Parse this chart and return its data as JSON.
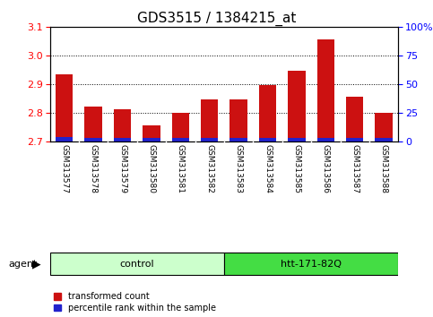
{
  "title": "GDS3515 / 1384215_at",
  "categories": [
    "GSM313577",
    "GSM313578",
    "GSM313579",
    "GSM313580",
    "GSM313581",
    "GSM313582",
    "GSM313583",
    "GSM313584",
    "GSM313585",
    "GSM313586",
    "GSM313587",
    "GSM313588"
  ],
  "red_values": [
    2.935,
    2.82,
    2.81,
    2.755,
    2.8,
    2.845,
    2.845,
    2.895,
    2.945,
    3.055,
    2.855,
    2.8
  ],
  "blue_values": [
    0.013,
    0.011,
    0.012,
    0.011,
    0.012,
    0.012,
    0.011,
    0.011,
    0.011,
    0.011,
    0.011,
    0.011
  ],
  "ymin": 2.7,
  "ymax": 3.1,
  "yticks": [
    2.7,
    2.8,
    2.9,
    3.0,
    3.1
  ],
  "right_yticks": [
    0,
    25,
    50,
    75,
    100
  ],
  "right_yticklabels": [
    "0",
    "25",
    "50",
    "75",
    "100%"
  ],
  "bar_color_red": "#cc1111",
  "bar_color_blue": "#2222cc",
  "bar_width": 0.6,
  "background_color": "#ffffff",
  "tick_area_bg": "#c8c8c8",
  "group1_label": "control",
  "group2_label": "htt-171-82Q",
  "group1_color": "#ccffcc",
  "group2_color": "#44dd44",
  "agent_label": "agent",
  "legend_red": "transformed count",
  "legend_blue": "percentile rank within the sample",
  "title_fontsize": 11,
  "axis_fontsize": 8,
  "group1_indices": [
    0,
    1,
    2,
    3,
    4,
    5
  ],
  "group2_indices": [
    6,
    7,
    8,
    9,
    10,
    11
  ]
}
